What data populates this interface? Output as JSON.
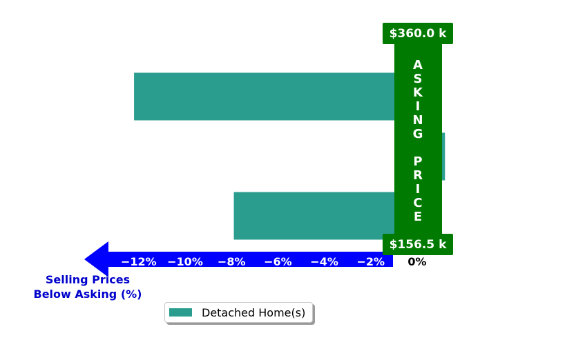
{
  "colors": {
    "bar": "#2a9d8f",
    "asking_band": "#007a00",
    "axis_arrow": "#0000ff",
    "axis_title": "#0000cc",
    "tick_text": "#ffffff",
    "zero_tick_text": "#000000"
  },
  "chart_data": {
    "type": "bar",
    "orientation": "horizontal",
    "categories": [
      "",
      "",
      ""
    ],
    "series": [
      {
        "name": "Detached Home(s)",
        "values": [
          -12.2,
          1.2,
          -7.9
        ]
      }
    ],
    "xlim": [
      -14,
      2
    ],
    "xticks": [
      -12,
      -10,
      -8,
      -6,
      -4,
      -2,
      0
    ],
    "xtick_labels": [
      "−12%",
      "−10%",
      "−8%",
      "−6%",
      "−4%",
      "−2%",
      "0%"
    ],
    "xlabel_lines": [
      "Selling Prices",
      "Below Asking (%)"
    ],
    "asking_label_letters": [
      "A",
      "S",
      "K",
      "I",
      "N",
      "G",
      "",
      "P",
      "R",
      "I",
      "C",
      "E"
    ],
    "price_top": "$360.0 k",
    "price_bottom": "$156.5 k",
    "legend_position": "bottom-center"
  },
  "legend": {
    "label": "Detached Home(s)"
  }
}
